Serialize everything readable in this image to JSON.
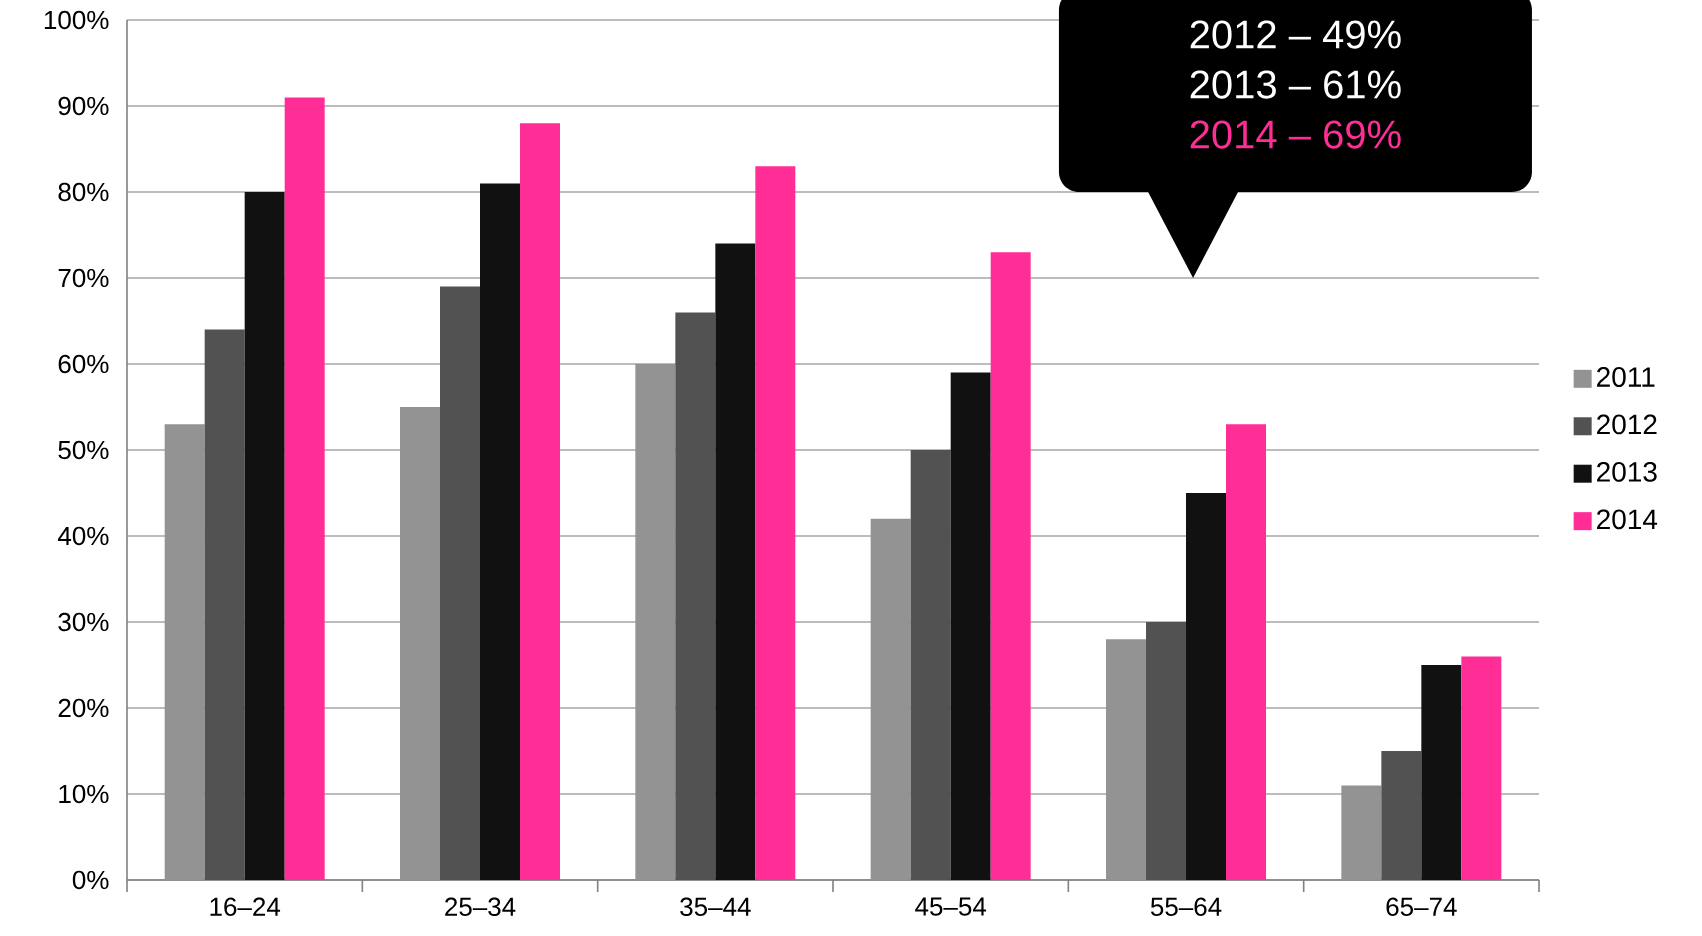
{
  "chart_data": {
    "type": "bar",
    "categories": [
      "16–24",
      "25–34",
      "35–44",
      "45–54",
      "55–64",
      "65–74"
    ],
    "series": [
      {
        "name": "2011",
        "color": "#939393",
        "values": [
          53,
          55,
          60,
          42,
          28,
          11
        ]
      },
      {
        "name": "2012",
        "color": "#525252",
        "values": [
          64,
          69,
          66,
          50,
          30,
          15
        ]
      },
      {
        "name": "2013",
        "color": "#111111",
        "values": [
          80,
          81,
          74,
          59,
          45,
          25
        ]
      },
      {
        "name": "2014",
        "color": "#ff2d96",
        "values": [
          91,
          88,
          83,
          73,
          53,
          26
        ]
      }
    ],
    "ylim": [
      0,
      100
    ],
    "yticks": [
      {
        "value": 0,
        "label": "0%"
      },
      {
        "value": 10,
        "label": "10%"
      },
      {
        "value": 20,
        "label": "20%"
      },
      {
        "value": 30,
        "label": "30%"
      },
      {
        "value": 40,
        "label": "40%"
      },
      {
        "value": 50,
        "label": "50%"
      },
      {
        "value": 60,
        "label": "60%"
      },
      {
        "value": 70,
        "label": "70%"
      },
      {
        "value": 80,
        "label": "80%"
      },
      {
        "value": 90,
        "label": "90%"
      },
      {
        "value": 100,
        "label": "100%"
      }
    ],
    "grid": "y",
    "legend": "right",
    "annotations": [
      "2012 – 49%",
      "2013 – 61%",
      "2014 – 69%"
    ]
  }
}
